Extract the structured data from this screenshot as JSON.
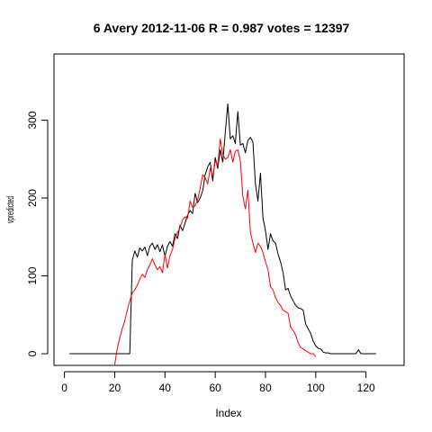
{
  "chart_data": {
    "type": "line",
    "title": "6 Avery 2012-11-06 R = 0.987 votes = 12397",
    "xlabel": "Index",
    "ylabel": "vpredicted",
    "xlim": [
      1,
      130
    ],
    "ylim": [
      -15,
      385
    ],
    "x_ticks": [
      0,
      20,
      40,
      60,
      80,
      100,
      120
    ],
    "y_ticks": [
      0,
      100,
      200,
      300
    ],
    "grid": false,
    "legend": "none",
    "series": [
      {
        "color": "#000000",
        "x_start": 2,
        "values": [
          0,
          0,
          0,
          0,
          0,
          0,
          0,
          0,
          0,
          0,
          0,
          0,
          0,
          0,
          0,
          0,
          0,
          0,
          0,
          0,
          0,
          0,
          0,
          0,
          0,
          120,
          132,
          124,
          136,
          132,
          137,
          126,
          138,
          142,
          134,
          140,
          131,
          140,
          125,
          138,
          144,
          138,
          154,
          148,
          165,
          158,
          168,
          178,
          184,
          180,
          206,
          194,
          200,
          209,
          230,
          240,
          246,
          222,
          252,
          238,
          262,
          246,
          284,
          321,
          276,
          280,
          270,
          311,
          268,
          270,
          258,
          274,
          278,
          272,
          218,
          196,
          232,
          174,
          158,
          134,
          154,
          145,
          142,
          128,
          118,
          104,
          82,
          84,
          74,
          68,
          62,
          59,
          58,
          56,
          38,
          32,
          26,
          16,
          10,
          7,
          6,
          2,
          1,
          1,
          0,
          0,
          0,
          0,
          0,
          0,
          0,
          0,
          0,
          0,
          0,
          5,
          0,
          0,
          0,
          0,
          0,
          0,
          0
        ]
      },
      {
        "color": "#ff0000",
        "x_start": 20,
        "values": [
          -14,
          6,
          20,
          32,
          42,
          56,
          68,
          78,
          82,
          88,
          96,
          102,
          98,
          108,
          114,
          122,
          114,
          108,
          112,
          104,
          128,
          110,
          126,
          134,
          148,
          156,
          162,
          172,
          176,
          174,
          196,
          188,
          190,
          198,
          212,
          230,
          226,
          218,
          238,
          228,
          248,
          242,
          276,
          256,
          250,
          252,
          262,
          246,
          260,
          262,
          248,
          202,
          186,
          210,
          156,
          142,
          130,
          142,
          138,
          130,
          118,
          108,
          86,
          82,
          72,
          66,
          62,
          56,
          54,
          52,
          34,
          30,
          24,
          14,
          8,
          6,
          4,
          2,
          0,
          0,
          -4
        ]
      }
    ]
  }
}
